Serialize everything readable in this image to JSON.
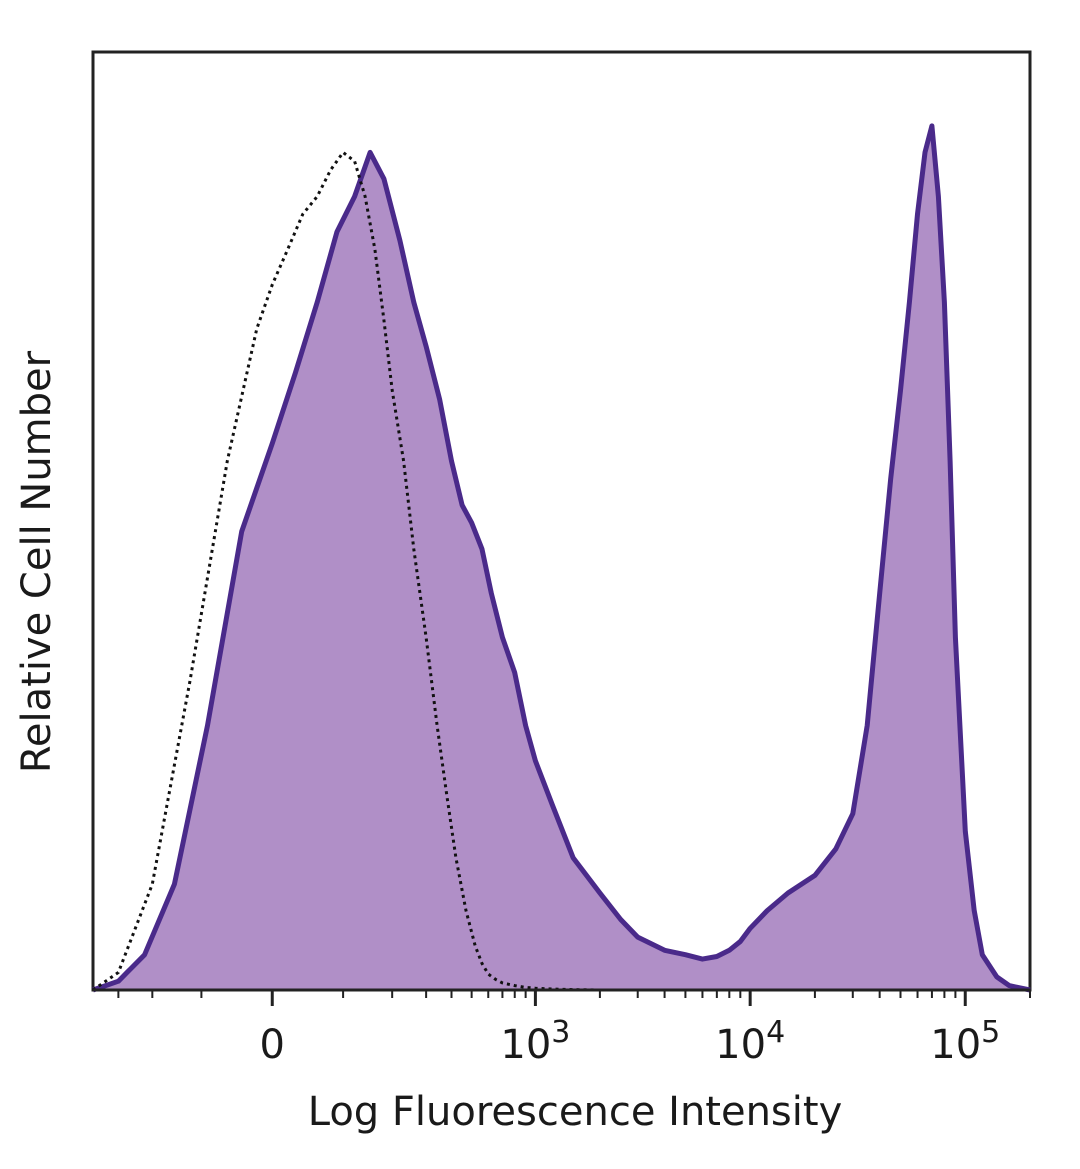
{
  "chart_data": {
    "type": "area",
    "title": "",
    "xlabel": "Log Fluorescence Intensity",
    "ylabel": "Relative Cell Number",
    "x_scale": "biexponential",
    "xlim": [
      -400,
      200000
    ],
    "ylim": [
      0,
      100
    ],
    "x_ticks": [
      {
        "value": 0,
        "base": "0",
        "exp": ""
      },
      {
        "value": 1000,
        "base": "10",
        "exp": "3"
      },
      {
        "value": 10000,
        "base": "10",
        "exp": "4"
      },
      {
        "value": 100000,
        "base": "10",
        "exp": "5"
      }
    ],
    "grid": false,
    "legend": "none",
    "colors": {
      "fill": "#b08fc7",
      "line": "#4a2a8a",
      "control": "#111111",
      "frame": "#222222"
    },
    "series": [
      {
        "style": "filled-solid",
        "x": [
          -400,
          -300,
          -220,
          -150,
          -90,
          -40,
          0,
          30,
          60,
          90,
          120,
          150,
          180,
          220,
          260,
          300,
          350,
          400,
          450,
          500,
          560,
          620,
          700,
          800,
          900,
          1000,
          1200,
          1500,
          2000,
          2500,
          3000,
          4000,
          5000,
          6000,
          7000,
          8000,
          9000,
          10000,
          12000,
          15000,
          20000,
          25000,
          30000,
          35000,
          40000,
          45000,
          50000,
          55000,
          60000,
          65000,
          70000,
          75000,
          80000,
          85000,
          90000,
          100000,
          110000,
          120000,
          140000,
          160000,
          200000
        ],
        "y": [
          0,
          1,
          4,
          12,
          30,
          52,
          62,
          70,
          78,
          86,
          90,
          95,
          92,
          85,
          78,
          73,
          67,
          60,
          55,
          53,
          50,
          45,
          40,
          36,
          30,
          26,
          21,
          15,
          11,
          8,
          6,
          4.5,
          4,
          3.5,
          3.8,
          4.5,
          5.5,
          7,
          9,
          11,
          13,
          16,
          20,
          30,
          45,
          58,
          68,
          78,
          88,
          95,
          98,
          90,
          78,
          60,
          40,
          18,
          9,
          4,
          1.5,
          0.5,
          0
        ]
      },
      {
        "style": "dotted",
        "x": [
          -400,
          -300,
          -200,
          -120,
          -60,
          -20,
          0,
          20,
          40,
          60,
          80,
          100,
          120,
          140,
          160,
          180,
          200,
          230,
          260,
          300,
          340,
          380,
          420,
          470,
          520,
          560,
          600,
          650,
          700,
          800,
          900,
          1000,
          1200,
          1500,
          2000,
          5000,
          200000
        ],
        "y": [
          0,
          2,
          12,
          35,
          60,
          75,
          80,
          84,
          88,
          90,
          93,
          95,
          94,
          90,
          84,
          76,
          68,
          60,
          50,
          40,
          30,
          22,
          15,
          9,
          5,
          3,
          1.8,
          1.2,
          0.8,
          0.5,
          0.3,
          0.2,
          0.1,
          0.05,
          0,
          0,
          0
        ]
      }
    ]
  }
}
